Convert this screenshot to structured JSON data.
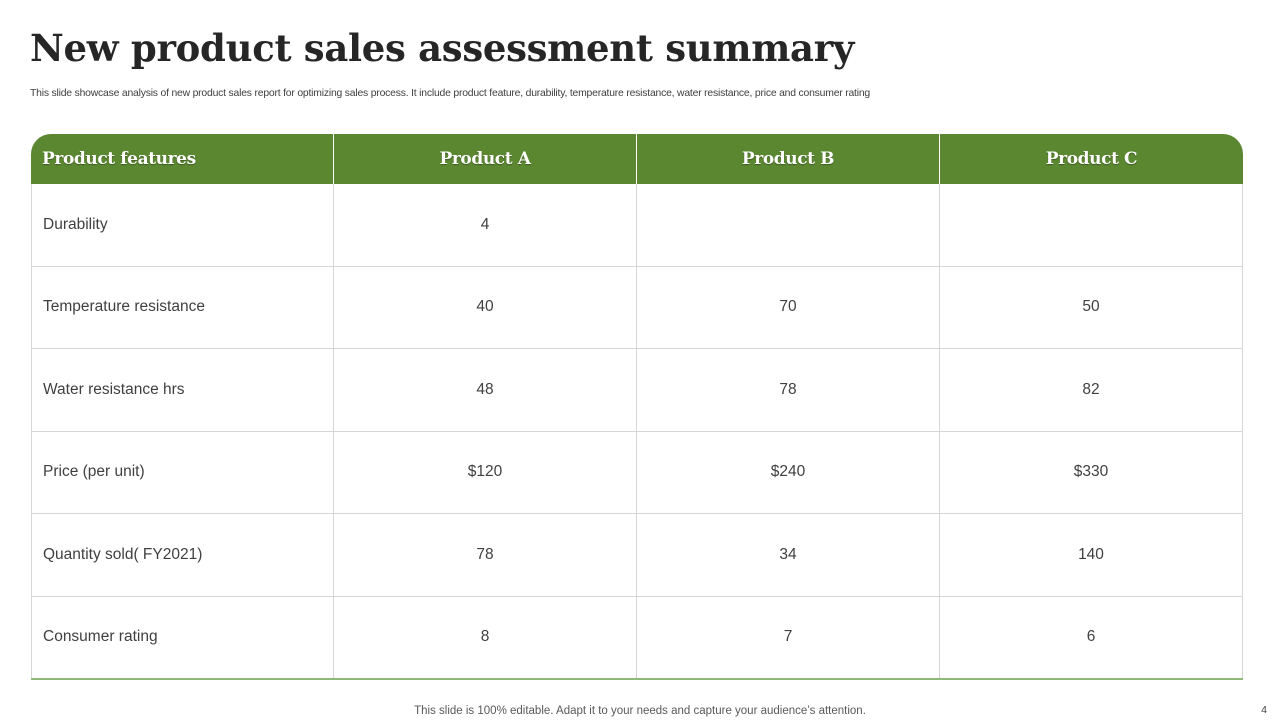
{
  "slide": {
    "title": "New product sales assessment summary",
    "subtitle": "This slide showcase analysis of new product sales report  for optimizing sales process. It include product feature,  durability, temperature resistance, water resistance, price and consumer rating",
    "footer_note": "This slide is 100% editable. Adapt it to your needs and capture your audience’s attention.",
    "page_number": "4"
  },
  "colors": {
    "header_green": "#5b8731",
    "bottom_rule": "#8fb87a",
    "grid": "#d6d6d6"
  },
  "table": {
    "headers": [
      "Product features",
      "Product A",
      "Product B",
      "Product C"
    ],
    "rows": [
      {
        "feature": "Durability",
        "values": [
          "4",
          "",
          ""
        ]
      },
      {
        "feature": "Temperature resistance",
        "values": [
          "40",
          "70",
          "50"
        ]
      },
      {
        "feature": "Water resistance hrs",
        "values": [
          "48",
          "78",
          "82"
        ]
      },
      {
        "feature": "Price (per unit)",
        "values": [
          "$120",
          "$240",
          "$330"
        ]
      },
      {
        "feature": "Quantity  sold( FY2021)",
        "values": [
          "78",
          "34",
          "140"
        ]
      },
      {
        "feature": "Consumer rating",
        "values": [
          "8",
          "7",
          "6"
        ]
      }
    ]
  }
}
